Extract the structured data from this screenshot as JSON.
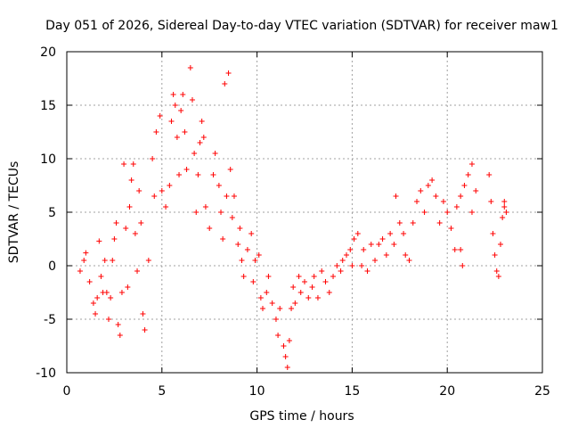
{
  "chart_data": {
    "type": "scatter",
    "title": "Day 051 of 2026, Sidereal Day-to-day VTEC variation (SDTVAR) for receiver maw1",
    "xlabel": "GPS time / hours",
    "ylabel": "SDTVAR / TECUs",
    "xlim": [
      0,
      25
    ],
    "ylim": [
      -10,
      20
    ],
    "xticks": [
      0,
      5,
      10,
      15,
      20,
      25
    ],
    "yticks": [
      -10,
      -5,
      0,
      5,
      10,
      15,
      20
    ],
    "grid": true,
    "marker": "+",
    "color": "#ff0000",
    "series": [
      {
        "name": "SDTVAR",
        "points": [
          [
            0.7,
            -0.5
          ],
          [
            0.9,
            0.5
          ],
          [
            1.0,
            1.2
          ],
          [
            1.2,
            -1.5
          ],
          [
            1.4,
            -3.5
          ],
          [
            1.5,
            -4.5
          ],
          [
            1.6,
            -3.0
          ],
          [
            1.7,
            2.3
          ],
          [
            1.8,
            -1.0
          ],
          [
            1.9,
            -2.5
          ],
          [
            2.0,
            0.5
          ],
          [
            2.1,
            -2.5
          ],
          [
            2.2,
            -5.0
          ],
          [
            2.3,
            -3.0
          ],
          [
            2.4,
            0.5
          ],
          [
            2.5,
            2.5
          ],
          [
            2.6,
            4.0
          ],
          [
            2.7,
            -5.5
          ],
          [
            2.8,
            -6.5
          ],
          [
            2.9,
            -2.5
          ],
          [
            3.0,
            9.5
          ],
          [
            3.1,
            3.5
          ],
          [
            3.2,
            -2.0
          ],
          [
            3.3,
            5.5
          ],
          [
            3.4,
            8.0
          ],
          [
            3.5,
            9.5
          ],
          [
            3.6,
            3.0
          ],
          [
            3.7,
            -0.5
          ],
          [
            3.8,
            7.0
          ],
          [
            3.9,
            4.0
          ],
          [
            4.0,
            -4.5
          ],
          [
            4.1,
            -6.0
          ],
          [
            4.3,
            0.5
          ],
          [
            4.5,
            10.0
          ],
          [
            4.6,
            6.5
          ],
          [
            4.7,
            12.5
          ],
          [
            4.9,
            14.0
          ],
          [
            5.0,
            7.0
          ],
          [
            5.2,
            5.5
          ],
          [
            5.4,
            7.5
          ],
          [
            5.5,
            13.5
          ],
          [
            5.6,
            16.0
          ],
          [
            5.7,
            15.0
          ],
          [
            5.8,
            12.0
          ],
          [
            5.9,
            8.5
          ],
          [
            6.0,
            14.5
          ],
          [
            6.1,
            16.0
          ],
          [
            6.2,
            12.5
          ],
          [
            6.3,
            9.0
          ],
          [
            6.5,
            18.5
          ],
          [
            6.6,
            15.5
          ],
          [
            6.7,
            10.5
          ],
          [
            6.8,
            5.0
          ],
          [
            6.9,
            8.5
          ],
          [
            7.0,
            11.5
          ],
          [
            7.1,
            13.5
          ],
          [
            7.2,
            12.0
          ],
          [
            7.3,
            5.5
          ],
          [
            7.5,
            3.5
          ],
          [
            7.7,
            8.5
          ],
          [
            7.8,
            10.5
          ],
          [
            8.0,
            7.5
          ],
          [
            8.1,
            5.0
          ],
          [
            8.2,
            2.5
          ],
          [
            8.3,
            17.0
          ],
          [
            8.4,
            6.5
          ],
          [
            8.5,
            18.0
          ],
          [
            8.6,
            9.0
          ],
          [
            8.7,
            4.5
          ],
          [
            8.8,
            6.5
          ],
          [
            9.0,
            2.0
          ],
          [
            9.1,
            3.5
          ],
          [
            9.2,
            0.5
          ],
          [
            9.3,
            -1.0
          ],
          [
            9.5,
            1.5
          ],
          [
            9.7,
            3.0
          ],
          [
            9.8,
            -1.5
          ],
          [
            9.9,
            0.5
          ],
          [
            10.1,
            1.0
          ],
          [
            10.2,
            -3.0
          ],
          [
            10.3,
            -4.0
          ],
          [
            10.5,
            -2.5
          ],
          [
            10.6,
            -1.0
          ],
          [
            10.8,
            -3.5
          ],
          [
            11.0,
            -5.0
          ],
          [
            11.1,
            -6.5
          ],
          [
            11.2,
            -4.0
          ],
          [
            11.4,
            -7.5
          ],
          [
            11.5,
            -8.5
          ],
          [
            11.6,
            -9.5
          ],
          [
            11.7,
            -7.0
          ],
          [
            11.8,
            -4.0
          ],
          [
            11.9,
            -2.0
          ],
          [
            12.0,
            -3.5
          ],
          [
            12.2,
            -1.0
          ],
          [
            12.3,
            -2.5
          ],
          [
            12.5,
            -1.5
          ],
          [
            12.7,
            -3.0
          ],
          [
            12.9,
            -2.0
          ],
          [
            13.0,
            -1.0
          ],
          [
            13.2,
            -3.0
          ],
          [
            13.4,
            -0.5
          ],
          [
            13.6,
            -1.5
          ],
          [
            13.8,
            -2.5
          ],
          [
            14.0,
            -1.0
          ],
          [
            14.2,
            0.0
          ],
          [
            14.4,
            -0.5
          ],
          [
            14.5,
            0.5
          ],
          [
            14.7,
            1.0
          ],
          [
            14.9,
            1.5
          ],
          [
            15.0,
            0.0
          ],
          [
            15.1,
            2.5
          ],
          [
            15.3,
            3.0
          ],
          [
            15.5,
            0.0
          ],
          [
            15.6,
            1.5
          ],
          [
            15.8,
            -0.5
          ],
          [
            16.0,
            2.0
          ],
          [
            16.2,
            0.5
          ],
          [
            16.4,
            2.0
          ],
          [
            16.6,
            2.5
          ],
          [
            16.8,
            1.0
          ],
          [
            17.0,
            3.0
          ],
          [
            17.2,
            2.0
          ],
          [
            17.3,
            6.5
          ],
          [
            17.5,
            4.0
          ],
          [
            17.7,
            3.0
          ],
          [
            17.8,
            1.0
          ],
          [
            18.0,
            0.5
          ],
          [
            18.2,
            4.0
          ],
          [
            18.4,
            6.0
          ],
          [
            18.6,
            7.0
          ],
          [
            18.8,
            5.0
          ],
          [
            19.0,
            7.5
          ],
          [
            19.2,
            8.0
          ],
          [
            19.4,
            6.5
          ],
          [
            19.6,
            4.0
          ],
          [
            19.8,
            6.0
          ],
          [
            20.0,
            5.0
          ],
          [
            20.2,
            3.5
          ],
          [
            20.4,
            1.5
          ],
          [
            20.5,
            5.5
          ],
          [
            20.7,
            6.5
          ],
          [
            20.9,
            7.5
          ],
          [
            21.1,
            8.5
          ],
          [
            21.3,
            9.5
          ],
          [
            21.5,
            7.0
          ],
          [
            21.3,
            5.0
          ],
          [
            20.7,
            1.5
          ],
          [
            20.8,
            0.0
          ],
          [
            22.2,
            8.5
          ],
          [
            22.3,
            6.0
          ],
          [
            22.4,
            3.0
          ],
          [
            22.5,
            1.0
          ],
          [
            22.6,
            -0.5
          ],
          [
            22.7,
            -1.0
          ],
          [
            22.8,
            2.0
          ],
          [
            22.9,
            4.5
          ],
          [
            23.0,
            6.0
          ],
          [
            23.1,
            5.0
          ],
          [
            23.0,
            5.5
          ]
        ]
      }
    ]
  }
}
